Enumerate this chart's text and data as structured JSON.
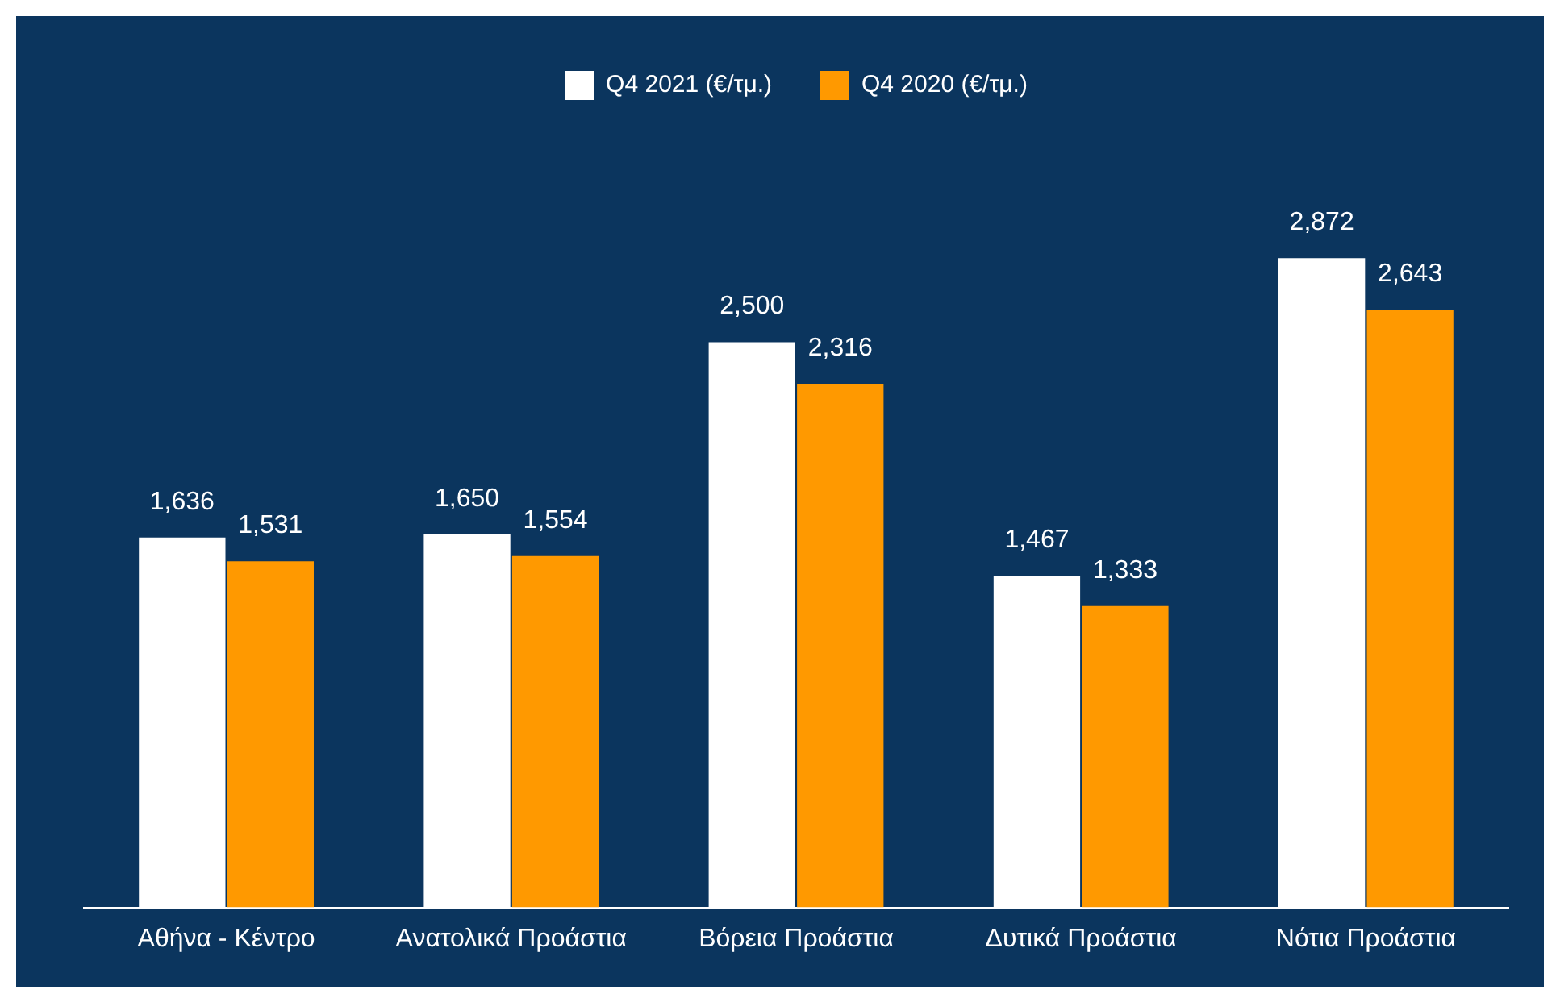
{
  "chart_data": {
    "type": "bar",
    "categories": [
      "Αθήνα - Κέντρο",
      "Ανατολικά Προάστια",
      "Βόρεια Προάστια",
      "Δυτικά Προάστια",
      "Νότια Προάστια"
    ],
    "series": [
      {
        "name": "Q4 2021 (€/τμ.)",
        "color": "#ffffff",
        "values": [
          1636,
          1650,
          2500,
          1467,
          2872
        ],
        "value_labels": [
          "1,636",
          "1,650",
          "2,500",
          "1,467",
          "2,872"
        ]
      },
      {
        "name": "Q4 2020 (€/τμ.)",
        "color": "#ff9900",
        "values": [
          1531,
          1554,
          2316,
          1333,
          2643
        ],
        "value_labels": [
          "1,531",
          "1,554",
          "2,316",
          "1,333",
          "2,643"
        ]
      }
    ],
    "legend": "top",
    "grid": false
  }
}
